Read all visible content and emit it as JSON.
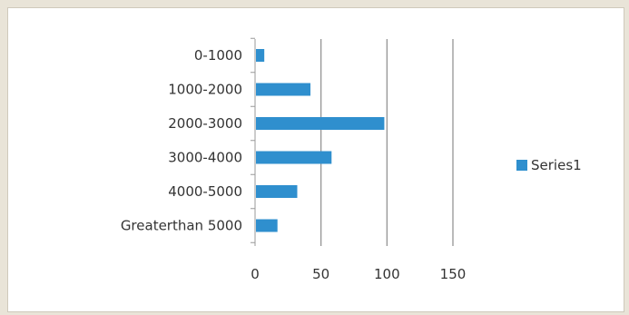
{
  "chart_data": {
    "type": "bar",
    "orientation": "horizontal",
    "categories": [
      "0-1000",
      "1000-2000",
      "2000-3000",
      "3000-4000",
      "4000-5000",
      "Greaterthan 5000"
    ],
    "series": [
      {
        "name": "Series1",
        "values": [
          7,
          42,
          98,
          58,
          32,
          17
        ]
      }
    ],
    "xlim": [
      0,
      150
    ],
    "xticks": [
      0,
      50,
      100,
      150
    ],
    "grid": true,
    "legend_position": "right",
    "colors": {
      "bar": "#2f8fce",
      "grid": "#8c8c8c",
      "axis": "#999999"
    }
  }
}
